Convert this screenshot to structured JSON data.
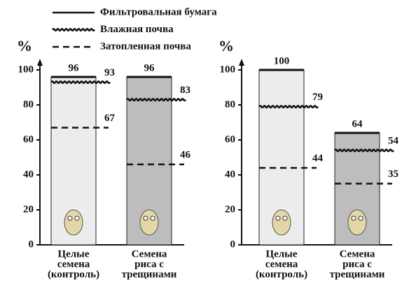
{
  "chart_data": [
    {
      "type": "bar",
      "ylabel": "%",
      "categories": [
        [
          "Целые",
          "семена",
          "(контроль)"
        ],
        [
          "Семена",
          "риса с",
          "трещинами"
        ]
      ],
      "bar_colors": [
        "#ececec",
        "#bdbdbd"
      ],
      "series": [
        {
          "name": "Фильтровальная бумага",
          "style": "solid",
          "color": "#111111",
          "values": [
            96,
            96
          ]
        },
        {
          "name": "Влажная почва",
          "style": "wavy",
          "color": "#111111",
          "values": [
            93,
            83
          ]
        },
        {
          "name": "Затопленная почва",
          "style": "dashed",
          "color": "#111111",
          "values": [
            67,
            46
          ]
        }
      ],
      "ylim": [
        0,
        100
      ],
      "yticks": [
        0,
        20,
        40,
        60,
        80,
        100
      ]
    },
    {
      "type": "bar",
      "ylabel": "%",
      "categories": [
        [
          "Целые",
          "семена",
          "(контроль)"
        ],
        [
          "Семена",
          "риса с",
          "трещинами"
        ]
      ],
      "bar_colors": [
        "#ececec",
        "#bdbdbd"
      ],
      "series": [
        {
          "style": "solid",
          "color": "#111111",
          "values": [
            100,
            64
          ]
        },
        {
          "style": "wavy",
          "color": "#111111",
          "values": [
            79,
            54
          ]
        },
        {
          "style": "dashed",
          "color": "#111111",
          "values": [
            44,
            35
          ]
        }
      ],
      "ylim": [
        0,
        100
      ],
      "yticks": [
        0,
        20,
        40,
        60,
        80,
        100
      ]
    }
  ]
}
